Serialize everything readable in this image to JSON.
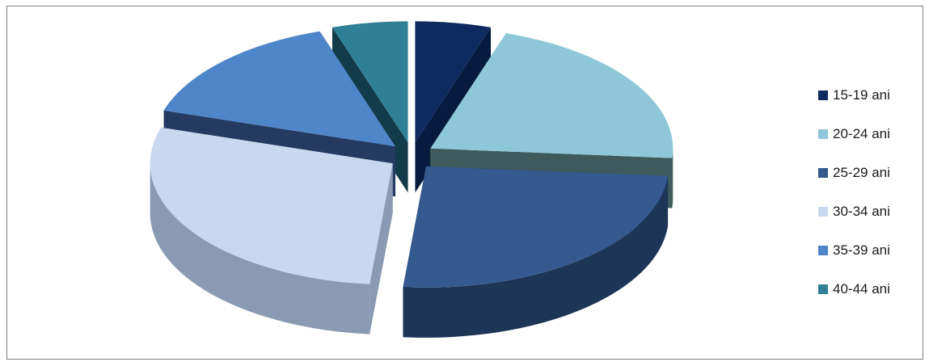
{
  "header_fragment": "",
  "chart_data": {
    "type": "pie",
    "title": "",
    "style": "3d-exploded",
    "legend_position": "right",
    "categories": [
      "15-19 ani",
      "20-24 ani",
      "25-29 ani",
      "30-34 ani",
      "35-39 ani",
      "40-44 ani"
    ],
    "values": [
      5,
      21,
      25,
      28,
      15,
      5
    ],
    "colors": [
      "#0e2a5e",
      "#8ec8d8",
      "#355a8f",
      "#c8d8ee",
      "#4f86c9",
      "#2f7f96"
    ],
    "side_colors": [
      "#071a3f",
      "#3e5a5c",
      "#1d3556",
      "#8a9ab3",
      "#243a60",
      "#123c49"
    ]
  }
}
